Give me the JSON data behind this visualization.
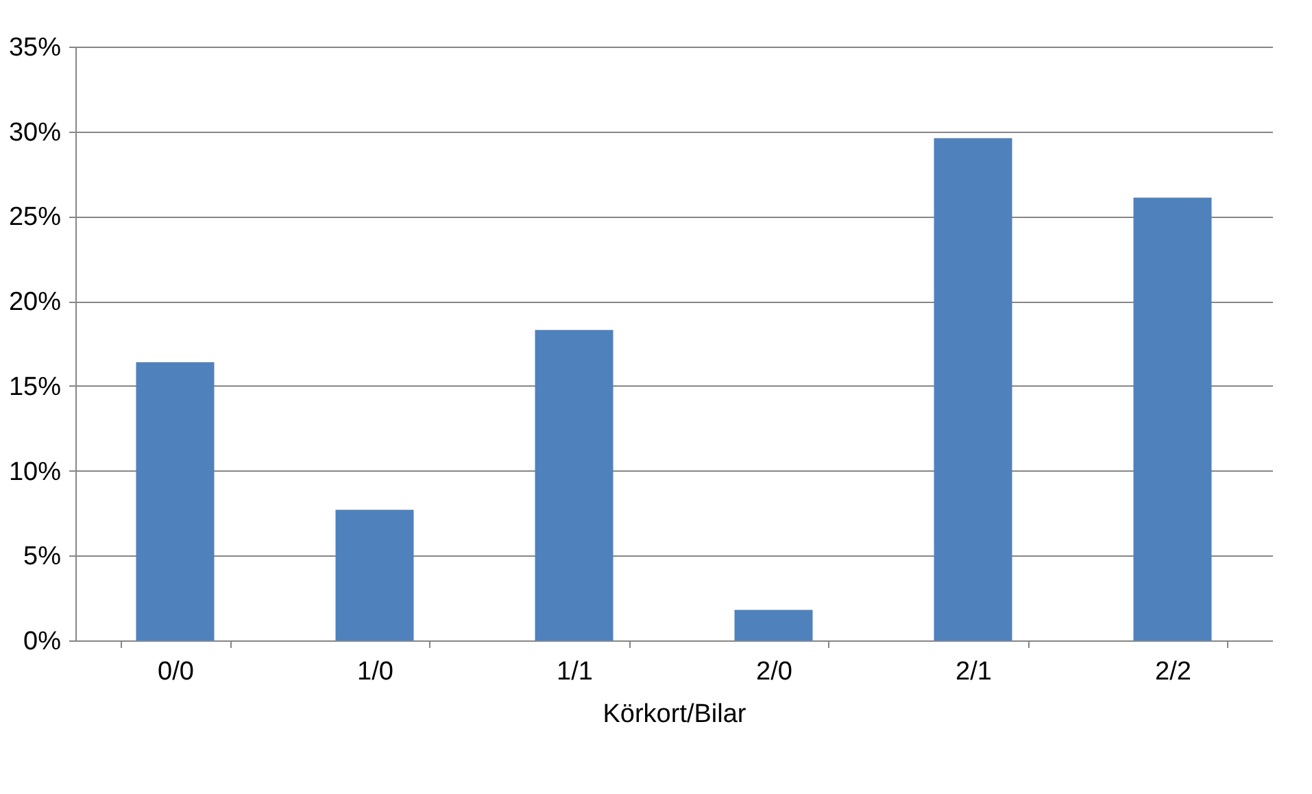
{
  "chart_data": {
    "type": "bar",
    "xlabel": "Körkort/Bilar",
    "categories": [
      "0/0",
      "1/0",
      "1/1",
      "2/0",
      "2/1",
      "2/2"
    ],
    "values": [
      16.4,
      7.7,
      18.3,
      1.8,
      29.6,
      26.1
    ],
    "color": "#4f81bd",
    "ylim": [
      0,
      35
    ],
    "yticks": [
      {
        "value": 0,
        "label": "0%"
      },
      {
        "value": 5,
        "label": "5%"
      },
      {
        "value": 10,
        "label": "10%"
      },
      {
        "value": 15,
        "label": "15%"
      },
      {
        "value": 20,
        "label": "20%"
      },
      {
        "value": 25,
        "label": "25%"
      },
      {
        "value": 30,
        "label": "30%"
      },
      {
        "value": 35,
        "label": "35%"
      }
    ],
    "grid": "y"
  }
}
